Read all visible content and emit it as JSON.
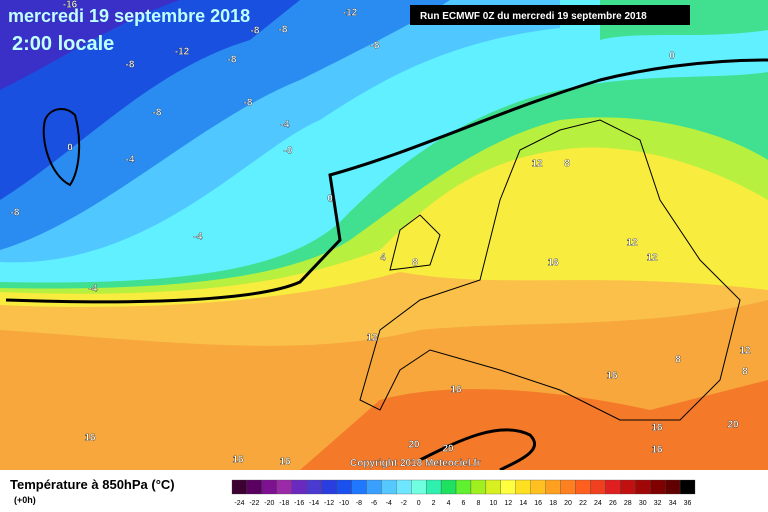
{
  "header": {
    "date": "mercredi 19 septembre 2018",
    "time": "2:00 locale",
    "run": "Run ECMWF 0Z du mercredi 19 septembre 2018"
  },
  "copyright": "Copyright 2018 Meteociel.fr",
  "legend": {
    "title": "Température à 850hPa (°C)",
    "lead": "(+0h)",
    "ticks": [
      -24,
      -22,
      -20,
      -18,
      -16,
      -14,
      -12,
      -10,
      -8,
      -6,
      -4,
      -2,
      0,
      2,
      4,
      6,
      8,
      10,
      12,
      14,
      16,
      18,
      20,
      22,
      24,
      26,
      28,
      30,
      32,
      34,
      36
    ],
    "colors": [
      "#3c0032",
      "#5a0060",
      "#7c1290",
      "#9a2aa8",
      "#6a2ac0",
      "#4a3ad0",
      "#2a3ee0",
      "#1a50f0",
      "#1f78ff",
      "#3aa0ff",
      "#55c8ff",
      "#6fe6ff",
      "#70ffe0",
      "#30f0b0",
      "#20e060",
      "#60f030",
      "#a0f020",
      "#d8f020",
      "#ffff40",
      "#ffe020",
      "#ffc020",
      "#ffa020",
      "#ff8020",
      "#ff6020",
      "#f04020",
      "#e02020",
      "#c01010",
      "#a00808",
      "#800000",
      "#600000",
      "#000000"
    ]
  },
  "contour_labels": [
    -16,
    -12,
    -12,
    -8,
    -8,
    -8,
    -8,
    -8,
    -8,
    -8,
    -4,
    -4,
    -4,
    -4,
    "-0",
    0,
    0,
    0,
    4,
    8,
    8,
    8,
    8,
    -8,
    12,
    12,
    12,
    12,
    12,
    16,
    16,
    16,
    16,
    16,
    16,
    16,
    16,
    20,
    20,
    20
  ]
}
